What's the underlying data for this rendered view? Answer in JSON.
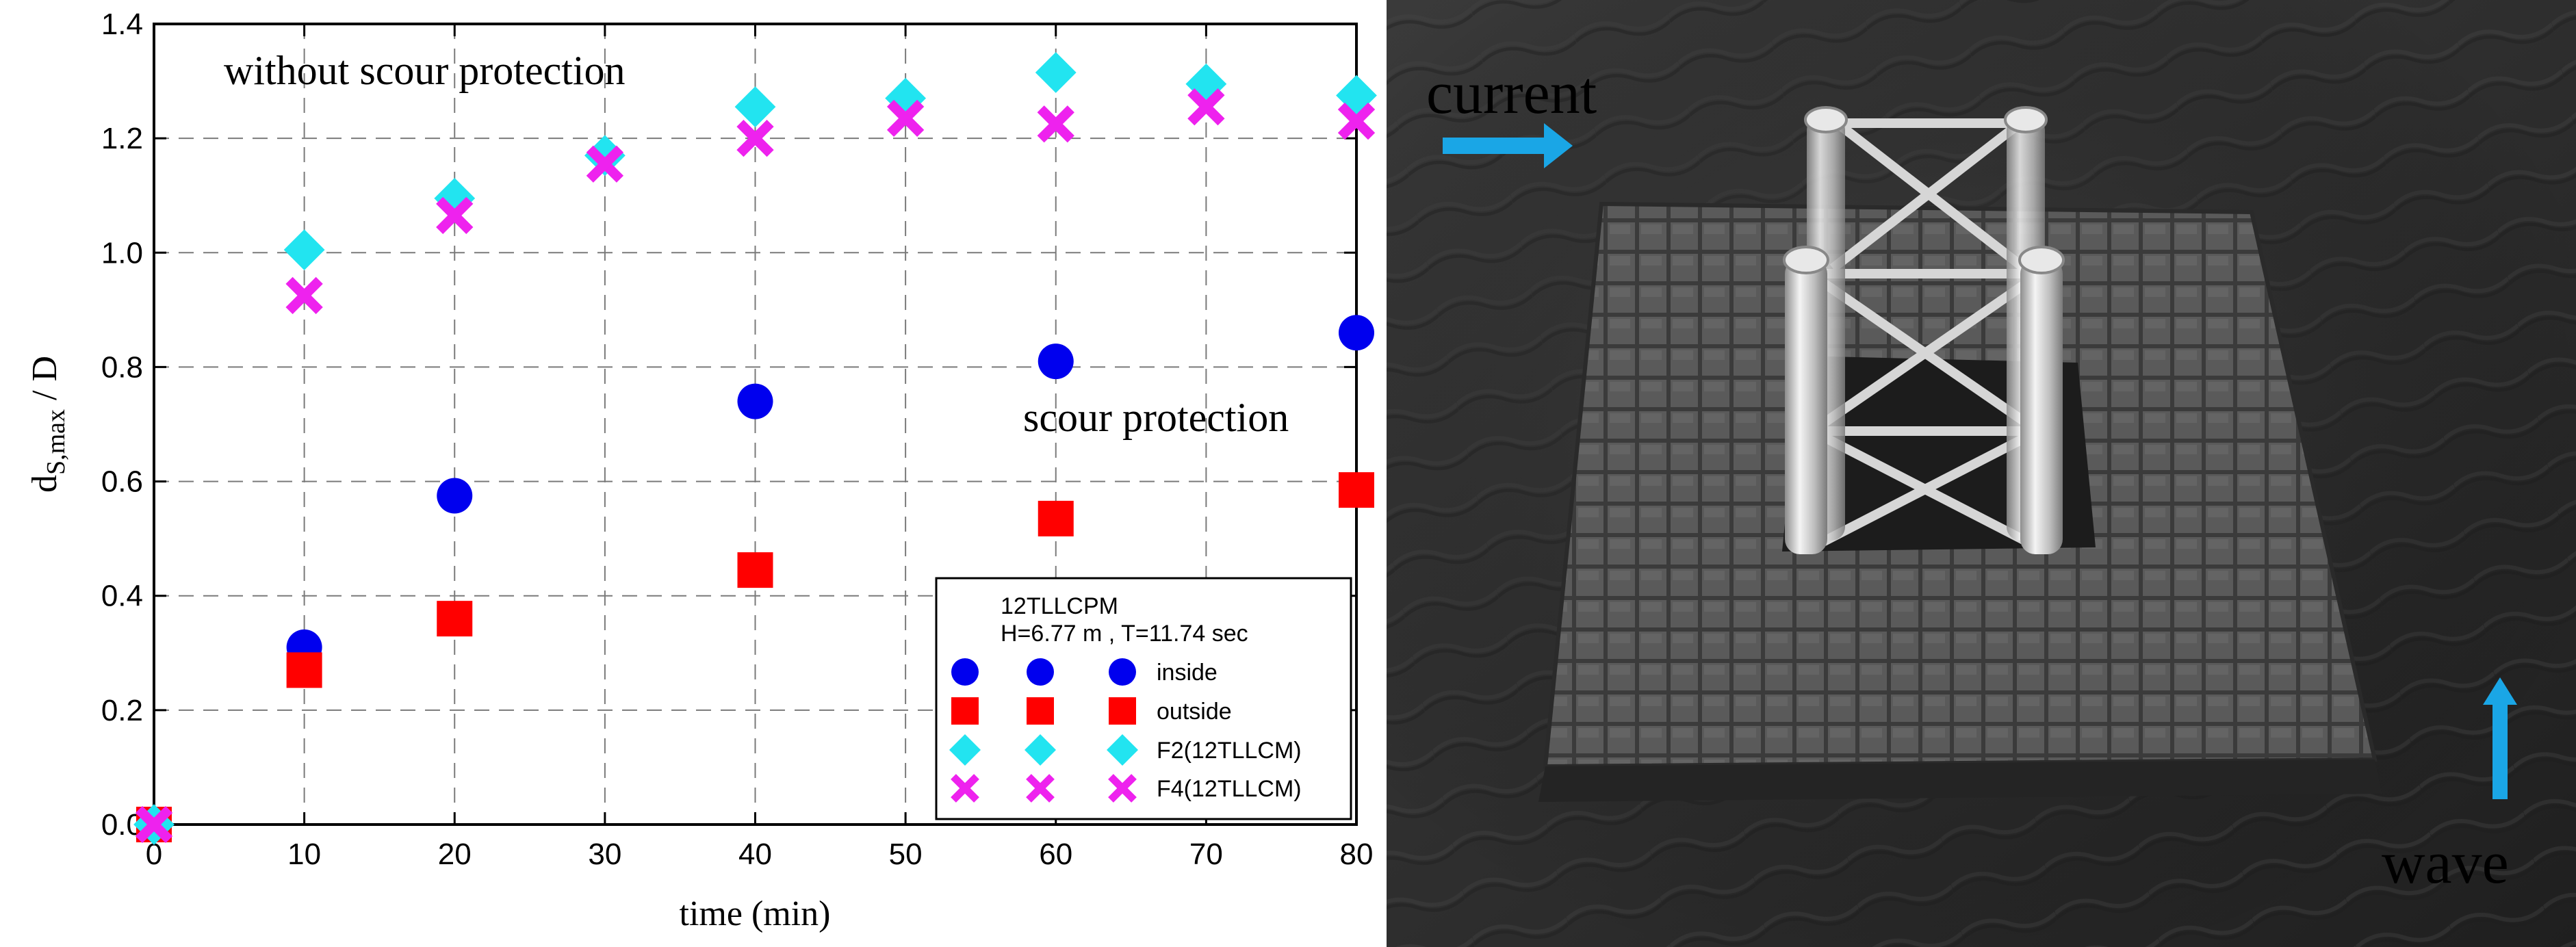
{
  "chart_data": {
    "type": "scatter",
    "title": "",
    "xlabel": "time (min)",
    "ylabel_main": "d",
    "ylabel_sub": "S,max",
    "ylabel_tail": " / D",
    "xlim": [
      0,
      80
    ],
    "ylim": [
      0,
      1.4
    ],
    "x_ticks": [
      0,
      10,
      20,
      30,
      40,
      50,
      60,
      70,
      80
    ],
    "y_ticks": [
      0.0,
      0.2,
      0.4,
      0.6,
      0.8,
      1.0,
      1.2,
      1.4
    ],
    "y_tick_labels": [
      "0.0",
      "0.2",
      "0.4",
      "0.6",
      "0.8",
      "1.0",
      "1.2",
      "1.4"
    ],
    "grid": true,
    "legend_position": "bottom-right",
    "legend_title": "12TLLCPM",
    "legend_subtitle": "H=6.77 m , T=11.74 sec",
    "annotations": [
      "without scour protection",
      "scour protection"
    ],
    "series": [
      {
        "name": "inside",
        "marker": "circle",
        "color": "#0000ee",
        "x": [
          0,
          10,
          20,
          40,
          60,
          80
        ],
        "y": [
          0.0,
          0.31,
          0.575,
          0.74,
          0.81,
          0.86
        ]
      },
      {
        "name": "outside",
        "marker": "square",
        "color": "#ff0000",
        "x": [
          0,
          10,
          20,
          40,
          60,
          80
        ],
        "y": [
          0.0,
          0.27,
          0.36,
          0.445,
          0.535,
          0.585
        ]
      },
      {
        "name": "F2(12TLLCM)",
        "marker": "diamond",
        "color": "#22e4f0",
        "x": [
          0,
          10,
          20,
          30,
          40,
          50,
          60,
          70,
          80
        ],
        "y": [
          0.0,
          1.005,
          1.095,
          1.17,
          1.255,
          1.27,
          1.315,
          1.295,
          1.275
        ]
      },
      {
        "name": "F4(12TLLCM)",
        "marker": "cross",
        "color": "#ee22ee",
        "x": [
          0,
          10,
          20,
          30,
          40,
          50,
          60,
          70,
          80
        ],
        "y": [
          0.0,
          0.925,
          1.065,
          1.155,
          1.2,
          1.235,
          1.225,
          1.255,
          1.23
        ]
      }
    ]
  },
  "photo": {
    "label_current": "current",
    "label_wave": "wave",
    "arrow_color": "#1aa6e6"
  }
}
